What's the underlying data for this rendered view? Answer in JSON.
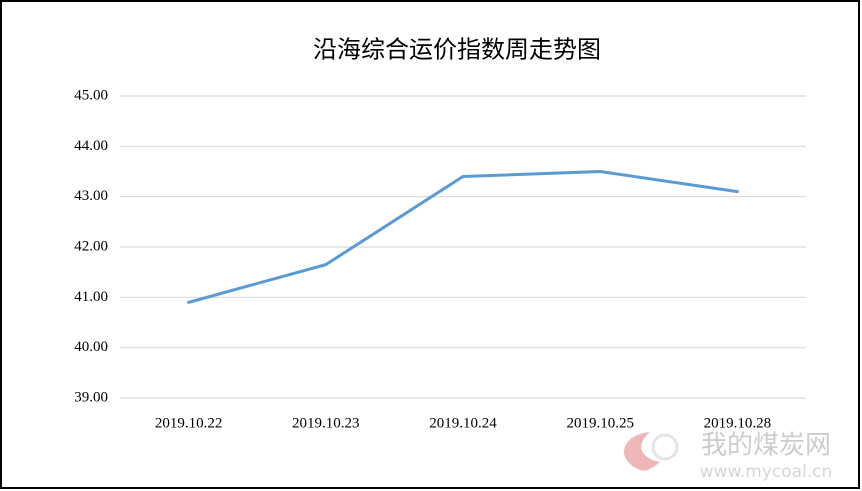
{
  "chart_data": {
    "type": "line",
    "title": "沿海综合运价指数周走势图",
    "categories": [
      "2019.10.22",
      "2019.10.23",
      "2019.10.24",
      "2019.10.25",
      "2019.10.28"
    ],
    "series": [
      {
        "color": "#5b9bd5",
        "values": [
          40.9,
          41.65,
          43.4,
          43.5,
          43.1
        ]
      }
    ],
    "ylim": [
      39,
      45
    ],
    "yticks": [
      {
        "value": 39,
        "label": "39.00"
      },
      {
        "value": 40,
        "label": "40.00"
      },
      {
        "value": 41,
        "label": "41.00"
      },
      {
        "value": 42,
        "label": "42.00"
      },
      {
        "value": 43,
        "label": "43.00"
      },
      {
        "value": 44,
        "label": "44.00"
      },
      {
        "value": 45,
        "label": "45.00"
      }
    ],
    "grid": true
  },
  "watermark": {
    "name": "我的煤炭网",
    "url": "www.mycoal.cn"
  }
}
